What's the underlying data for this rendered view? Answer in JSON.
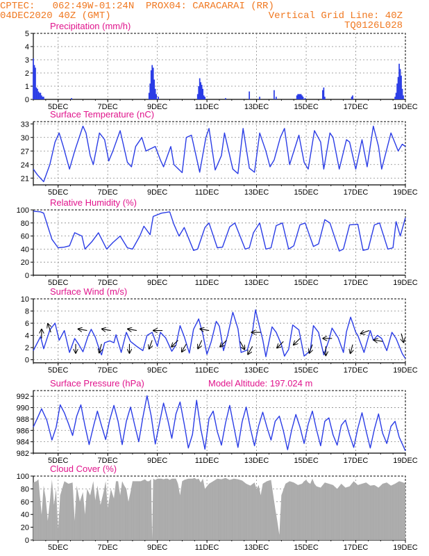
{
  "header": {
    "line1_left": "CPTEC:   062:49W-01:24N  PROX04: CARACARAI (RR)",
    "line2_left": "04DEC2020 40Z (GMT)",
    "line2_right": "Vertical Grid Line: 40Z",
    "line3_right": "TQ0126L028"
  },
  "colors": {
    "header": "#f07820",
    "title": "#e0148c",
    "series": "#2a3ce6",
    "cloud": "#a9a9a9",
    "grid": "#888888"
  },
  "x_axis": {
    "labels": [
      "5DEC",
      "7DEC",
      "9DEC",
      "11DEC",
      "13DEC",
      "15DEC",
      "17DEC",
      "19DEC"
    ],
    "label_hours": [
      24,
      72,
      120,
      168,
      216,
      264,
      312,
      360
    ],
    "range_hours": [
      0,
      360
    ]
  },
  "chart_data": [
    {
      "type": "bar",
      "title": "Precipitation (mm/h)",
      "ylim": [
        0,
        5
      ],
      "yticks": [
        0,
        1,
        2,
        3,
        4,
        5
      ],
      "bars": [
        [
          0,
          3.1
        ],
        [
          1,
          2.6
        ],
        [
          2,
          2.4
        ],
        [
          3,
          0.9
        ],
        [
          4,
          0.8
        ],
        [
          5,
          0.6
        ],
        [
          6,
          0.5
        ],
        [
          7,
          0.5
        ],
        [
          8,
          0.3
        ],
        [
          9,
          0.2
        ],
        [
          10,
          0.2
        ],
        [
          37,
          0.1
        ],
        [
          112,
          0.5
        ],
        [
          113,
          1.2
        ],
        [
          114,
          2.2
        ],
        [
          115,
          2.6
        ],
        [
          116,
          2.4
        ],
        [
          117,
          1.5
        ],
        [
          118,
          0.8
        ],
        [
          119,
          0.4
        ],
        [
          121,
          0.2
        ],
        [
          159,
          0.4
        ],
        [
          160,
          1.0
        ],
        [
          161,
          1.6
        ],
        [
          162,
          1.3
        ],
        [
          163,
          1.1
        ],
        [
          164,
          0.8
        ],
        [
          165,
          0.3
        ],
        [
          166,
          0.2
        ],
        [
          186,
          0.1
        ],
        [
          209,
          0.6
        ],
        [
          219,
          0.2
        ],
        [
          233,
          0.7
        ],
        [
          235,
          0.2
        ],
        [
          255,
          0.3
        ],
        [
          256,
          0.4
        ],
        [
          257,
          0.4
        ],
        [
          258,
          0.4
        ],
        [
          259,
          0.4
        ],
        [
          260,
          0.3
        ],
        [
          261,
          0.2
        ],
        [
          263,
          0.1
        ],
        [
          280,
          0.7
        ],
        [
          281,
          0.9
        ],
        [
          282,
          0.2
        ],
        [
          308,
          0.2
        ],
        [
          309,
          0.3
        ],
        [
          350,
          0.2
        ],
        [
          351,
          0.5
        ],
        [
          352,
          1.2
        ],
        [
          353,
          1.7
        ],
        [
          354,
          2.7
        ],
        [
          355,
          2.3
        ],
        [
          356,
          1.8
        ],
        [
          357,
          0.8
        ],
        [
          358,
          0.3
        ]
      ]
    },
    {
      "type": "line",
      "title": "Surface Temperature (nC)",
      "ylim": [
        19.5,
        33.5
      ],
      "yticks": [
        21,
        24,
        27,
        30,
        33
      ],
      "x": [
        0,
        4,
        10,
        16,
        21,
        25,
        29,
        35,
        40,
        48,
        51,
        55,
        58,
        64,
        69,
        73,
        77,
        84,
        91,
        95,
        99,
        105,
        109,
        118,
        123,
        126,
        133,
        136,
        144,
        148,
        153,
        161,
        167,
        170,
        176,
        182,
        185,
        193,
        198,
        203,
        209,
        214,
        219,
        225,
        229,
        233,
        239,
        243,
        248,
        257,
        262,
        266,
        272,
        278,
        281,
        287,
        290,
        296,
        303,
        306,
        312,
        318,
        323,
        329,
        334,
        337,
        346,
        353,
        357,
        360
      ],
      "y": [
        23,
        21.7,
        20.2,
        24,
        29,
        31,
        28,
        23,
        27,
        32.5,
        31,
        26,
        24,
        31,
        29.5,
        24.8,
        27,
        31.5,
        24.5,
        23.5,
        28,
        30,
        27,
        28,
        25,
        23.5,
        28,
        24,
        22.2,
        30,
        30.5,
        22.3,
        30,
        32,
        22.8,
        26,
        31,
        23,
        22,
        32,
        23.2,
        22.3,
        31,
        27,
        23.5,
        25,
        30,
        32,
        24,
        30.5,
        24.5,
        23,
        31.5,
        29,
        23,
        31,
        30,
        23,
        29.5,
        29,
        23,
        29.5,
        23.5,
        32.5,
        28,
        23,
        31,
        27,
        28.5,
        28
      ]
    },
    {
      "type": "line",
      "title": "Relative Humidity (%)",
      "ylim": [
        0,
        100
      ],
      "yticks": [
        0,
        20,
        40,
        60,
        80,
        100
      ],
      "x": [
        0,
        7,
        10,
        14,
        18,
        24,
        30,
        35,
        40,
        47,
        50,
        57,
        63,
        71,
        77,
        84,
        91,
        96,
        103,
        107,
        113,
        116,
        124,
        132,
        136,
        141,
        146,
        155,
        159,
        166,
        170,
        178,
        183,
        190,
        195,
        205,
        209,
        213,
        219,
        225,
        230,
        235,
        241,
        247,
        252,
        258,
        263,
        271,
        276,
        282,
        287,
        296,
        300,
        306,
        314,
        319,
        324,
        330,
        335,
        343,
        348,
        351,
        355,
        360
      ],
      "y": [
        98,
        97,
        95,
        75,
        55,
        42,
        43,
        45,
        65,
        60,
        40,
        52,
        65,
        40,
        50,
        60,
        42,
        40,
        60,
        75,
        62,
        90,
        95,
        97,
        78,
        60,
        73,
        38,
        40,
        73,
        80,
        42,
        43,
        74,
        80,
        40,
        42,
        65,
        80,
        40,
        42,
        76,
        80,
        40,
        45,
        77,
        80,
        44,
        48,
        85,
        80,
        37,
        40,
        77,
        78,
        38,
        40,
        77,
        80,
        40,
        42,
        82,
        60,
        88
      ]
    },
    {
      "type": "line",
      "title": "Surface Wind (m/s)",
      "ylim": [
        -0.5,
        10
      ],
      "yticks": [
        0,
        2,
        4,
        6,
        8,
        10
      ],
      "x": [
        0,
        7,
        10,
        16,
        21,
        25,
        30,
        35,
        40,
        44,
        48,
        53,
        56,
        60,
        64,
        66,
        69,
        74,
        78,
        80,
        85,
        90,
        94,
        100,
        106,
        110,
        115,
        120,
        123,
        128,
        134,
        138,
        142,
        146,
        151,
        155,
        160,
        164,
        168,
        172,
        177,
        180,
        184,
        188,
        193,
        198,
        201,
        207,
        212,
        215,
        218,
        222,
        225,
        231,
        235,
        240,
        243,
        247,
        251,
        257,
        262,
        268,
        271,
        276,
        281,
        286,
        289,
        295,
        300,
        303,
        307,
        312,
        314,
        320,
        326,
        329,
        333,
        337,
        342,
        347,
        351,
        357,
        360
      ],
      "y": [
        1.5,
        3.8,
        1.8,
        4.9,
        6,
        3.2,
        4.8,
        1.2,
        3.5,
        2.5,
        1.3,
        3.9,
        5,
        3.7,
        1.6,
        0.8,
        2.8,
        3.1,
        2.8,
        4.1,
        1.2,
        4.5,
        3,
        2.2,
        1.5,
        4,
        4.5,
        2.2,
        4.5,
        3.6,
        1.4,
        2.4,
        5.6,
        3.8,
        1.1,
        5,
        6.7,
        4.2,
        0.9,
        2.9,
        6.3,
        5.5,
        1.5,
        4,
        7.8,
        5.1,
        1.2,
        1.6,
        4.5,
        8.2,
        6,
        3.3,
        0.5,
        5.4,
        4.5,
        2.5,
        0.6,
        1.7,
        5.7,
        4.9,
        0.6,
        1.5,
        5.6,
        4.5,
        0.8,
        3.2,
        5.2,
        3.6,
        1.2,
        4.6,
        7,
        4.5,
        4,
        1.2,
        4.8,
        3.2,
        4,
        3.5,
        1.5,
        4.5,
        3.5,
        1,
        0.2
      ],
      "arrows": [
        {
          "h": 8,
          "spd": 3.5,
          "dx": 0,
          "dy": -1
        },
        {
          "h": 17,
          "spd": 4.5,
          "dx": -0.34,
          "dy": -0.94
        },
        {
          "h": 41,
          "spd": 2.6,
          "dx": 0,
          "dy": 1
        },
        {
          "h": 52,
          "spd": 4.8,
          "dx": -0.98,
          "dy": -0.17
        },
        {
          "h": 66,
          "spd": 2.6,
          "dx": -0.26,
          "dy": 0.97
        },
        {
          "h": 75,
          "spd": 4.8,
          "dx": -0.98,
          "dy": -0.17
        },
        {
          "h": 93,
          "spd": 2.6,
          "dx": 0,
          "dy": 1
        },
        {
          "h": 100,
          "spd": 4.8,
          "dx": -0.98,
          "dy": -0.17
        },
        {
          "h": 115,
          "spd": 3.2,
          "dx": -0.34,
          "dy": 0.94
        },
        {
          "h": 125,
          "spd": 4.8,
          "dx": -1,
          "dy": 0
        },
        {
          "h": 140,
          "spd": 3.2,
          "dx": -0.71,
          "dy": 0.71
        },
        {
          "h": 148,
          "spd": 2.6,
          "dx": -0.5,
          "dy": 0.87
        },
        {
          "h": 163,
          "spd": 3.2,
          "dx": -0.42,
          "dy": 0.91
        },
        {
          "h": 170,
          "spd": 4.8,
          "dx": -0.98,
          "dy": -0.17
        },
        {
          "h": 187,
          "spd": 3.2,
          "dx": -0.71,
          "dy": 0.71
        },
        {
          "h": 200,
          "spd": 3.0,
          "dx": 0.5,
          "dy": 0.87
        },
        {
          "h": 212,
          "spd": 2.2,
          "dx": -0.5,
          "dy": 0.87
        },
        {
          "h": 220,
          "spd": 4.5,
          "dx": -1,
          "dy": 0
        },
        {
          "h": 242,
          "spd": 3.0,
          "dx": -0.71,
          "dy": 0.71
        },
        {
          "h": 258,
          "spd": 3.5,
          "dx": -0.71,
          "dy": 0.71
        },
        {
          "h": 270,
          "spd": 2.5,
          "dx": -0.34,
          "dy": 0.94
        },
        {
          "h": 283,
          "spd": 2.2,
          "dx": 0,
          "dy": 1
        },
        {
          "h": 289,
          "spd": 3.5,
          "dx": -1,
          "dy": 0
        },
        {
          "h": 309,
          "spd": 2.5,
          "dx": -0.26,
          "dy": 0.97
        },
        {
          "h": 325,
          "spd": 4.8,
          "dx": -0.94,
          "dy": 0.34
        },
        {
          "h": 338,
          "spd": 3.0,
          "dx": -0.98,
          "dy": -0.17
        },
        {
          "h": 356,
          "spd": 4.3,
          "dx": 0.26,
          "dy": 0.97
        }
      ]
    },
    {
      "type": "line",
      "title": "Surface Pressure (hPa)",
      "subtitle": "Model Altitude: 197.024 m",
      "ylim": [
        982,
        993
      ],
      "yticks": [
        982,
        984,
        986,
        988,
        990,
        992
      ],
      "x": [
        0,
        4,
        8,
        13,
        18,
        22,
        26,
        30,
        34,
        38,
        42,
        46,
        50,
        54,
        58,
        62,
        66,
        70,
        74,
        78,
        82,
        86,
        90,
        94,
        98,
        102,
        106,
        110,
        114,
        118,
        122,
        126,
        130,
        134,
        138,
        142,
        146,
        150,
        154,
        158,
        162,
        166,
        170,
        174,
        178,
        182,
        186,
        190,
        194,
        198,
        202,
        206,
        210,
        214,
        218,
        222,
        226,
        230,
        234,
        238,
        242,
        246,
        250,
        254,
        258,
        262,
        266,
        270,
        274,
        278,
        282,
        286,
        290,
        294,
        298,
        302,
        306,
        310,
        314,
        318,
        322,
        326,
        330,
        334,
        338,
        342,
        346,
        350,
        354,
        360
      ],
      "y": [
        986.6,
        988.2,
        989.8,
        987.8,
        984.3,
        986.5,
        990.5,
        989.1,
        987.2,
        985.1,
        988.5,
        990.5,
        986.8,
        983.5,
        986.6,
        989.4,
        986.8,
        984.4,
        987.9,
        990.4,
        987.6,
        983.5,
        987.6,
        990.1,
        987,
        984,
        988.3,
        992.1,
        988.6,
        983.6,
        987.2,
        990.8,
        987.9,
        984.6,
        988.9,
        991,
        987.1,
        982.9,
        985.3,
        991.3,
        986.3,
        982.7,
        988.1,
        989.4,
        985.8,
        983.4,
        987.3,
        990.4,
        986.7,
        983,
        987.5,
        990.1,
        986.4,
        983.3,
        986.8,
        989.2,
        986.6,
        984.3,
        987.6,
        988.5,
        985.9,
        982.6,
        986.1,
        988.8,
        986.6,
        983.7,
        987.1,
        989.4,
        986.1,
        983.3,
        987.6,
        988.2,
        985.2,
        983.4,
        986.9,
        987.8,
        985.2,
        983,
        986.4,
        989.1,
        985.9,
        982.9,
        986.2,
        988.9,
        985.5,
        983.7,
        986.7,
        987.6,
        984.8,
        982.4
      ]
    },
    {
      "type": "area",
      "title": "Cloud Cover (%)",
      "ylim": [
        0,
        100
      ],
      "yticks": [
        0,
        20,
        40,
        60,
        80,
        100
      ],
      "x": [
        0,
        3,
        5,
        8,
        10,
        12,
        14,
        16,
        18,
        20,
        22,
        24,
        26,
        30,
        34,
        38,
        40,
        42,
        45,
        48,
        50,
        52,
        55,
        58,
        60,
        62,
        65,
        68,
        70,
        72,
        75,
        78,
        80,
        82,
        84,
        86,
        88,
        90,
        92,
        94,
        96,
        100,
        104,
        108,
        110,
        112,
        114,
        115,
        116,
        118,
        120,
        122,
        124,
        126,
        128,
        130,
        132,
        134,
        138,
        140,
        142,
        144,
        146,
        150,
        154,
        156,
        158,
        160,
        162,
        164,
        166,
        170,
        174,
        178,
        182,
        186,
        190,
        194,
        198,
        202,
        206,
        210,
        214,
        216,
        218,
        220,
        222,
        226,
        230,
        234,
        236,
        238,
        240,
        244,
        248,
        252,
        256,
        260,
        262,
        264,
        266,
        268,
        270,
        272,
        274,
        278,
        282,
        286,
        290,
        294,
        298,
        302,
        306,
        310,
        314,
        318,
        322,
        326,
        330,
        334,
        338,
        342,
        346,
        350,
        354,
        358,
        360
      ],
      "y": [
        90,
        92,
        95,
        40,
        85,
        65,
        30,
        60,
        95,
        55,
        80,
        15,
        70,
        92,
        88,
        90,
        30,
        85,
        60,
        75,
        40,
        80,
        70,
        92,
        62,
        85,
        55,
        75,
        92,
        50,
        80,
        65,
        92,
        92,
        70,
        92,
        85,
        80,
        60,
        75,
        92,
        92,
        92,
        95,
        92,
        92,
        95,
        2,
        96,
        94,
        96,
        96,
        96,
        95,
        96,
        96,
        94,
        96,
        96,
        88,
        70,
        92,
        94,
        96,
        96,
        97,
        95,
        96,
        90,
        96,
        80,
        88,
        92,
        96,
        95,
        97,
        94,
        96,
        95,
        93,
        88,
        85,
        90,
        80,
        86,
        70,
        88,
        92,
        94,
        50,
        30,
        8,
        70,
        88,
        92,
        90,
        86,
        88,
        92,
        94,
        90,
        88,
        96,
        88,
        84,
        82,
        90,
        88,
        86,
        80,
        88,
        82,
        84,
        92,
        86,
        88,
        90,
        85,
        86,
        82,
        88,
        90,
        85,
        88,
        92,
        90,
        88
      ]
    }
  ]
}
